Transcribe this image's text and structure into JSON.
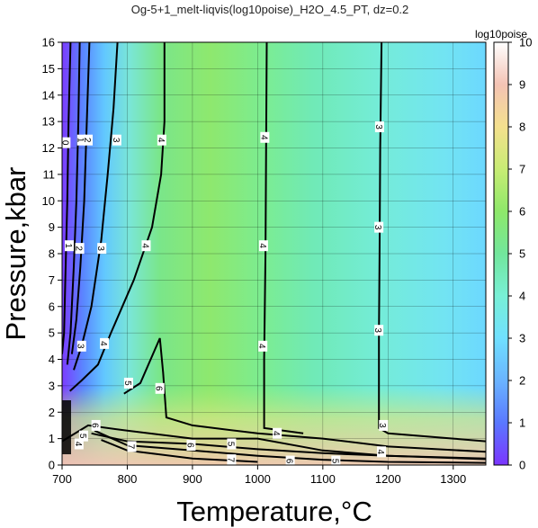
{
  "chart_data": {
    "type": "heatmap",
    "title": "Og-5+1_melt-liqvis(log10poise)_H2O_4.5_PT, dz=0.2",
    "xlabel": "Temperature,°C",
    "ylabel": "Pressure,kbar",
    "xlim": [
      700,
      1350
    ],
    "ylim": [
      0,
      16
    ],
    "x_ticks": [
      "700",
      "800",
      "900",
      "1000",
      "1100",
      "1200",
      "1300"
    ],
    "y_ticks": [
      "0",
      "1",
      "2",
      "3",
      "4",
      "5",
      "6",
      "7",
      "8",
      "9",
      "10",
      "11",
      "12",
      "13",
      "14",
      "15",
      "16"
    ],
    "grid": true,
    "colorbar": {
      "label": "log10poise",
      "range": [
        0,
        10
      ],
      "ticks": [
        "0",
        "1",
        "2",
        "3",
        "4",
        "5",
        "6",
        "7",
        "8",
        "9",
        "10"
      ],
      "colors": [
        "#7b35ff",
        "#5a78ff",
        "#6ab4ff",
        "#70e0ff",
        "#78f0d6",
        "#72e69c",
        "#8ee86a",
        "#c8ec74",
        "#f4e08e",
        "#f4c3b4",
        "#ffffff"
      ]
    },
    "contours": [
      {
        "level": "0",
        "points": [
          [
            713,
            16
          ],
          [
            710,
            13
          ],
          [
            708,
            10
          ],
          [
            705,
            7
          ],
          [
            703,
            5
          ],
          [
            700,
            4.2
          ]
        ]
      },
      {
        "level": "1",
        "points": [
          [
            727,
            16
          ],
          [
            725,
            13
          ],
          [
            722,
            10
          ],
          [
            718,
            7.5
          ],
          [
            713,
            5
          ],
          [
            708,
            3.8
          ]
        ]
      },
      {
        "level": "2",
        "points": [
          [
            742,
            16
          ],
          [
            738,
            13
          ],
          [
            734,
            10
          ],
          [
            728,
            7.5
          ],
          [
            722,
            5.5
          ],
          [
            715,
            4.2
          ]
        ]
      },
      {
        "level": "3",
        "points": [
          [
            785,
            16
          ],
          [
            779,
            13.5
          ],
          [
            770,
            11
          ],
          [
            760,
            8.5
          ],
          [
            745,
            6
          ],
          [
            730,
            4.5
          ],
          [
            718,
            3.6
          ]
        ]
      },
      {
        "level": "4",
        "points": [
          [
            857,
            16
          ],
          [
            857,
            13
          ],
          [
            852,
            11
          ],
          [
            838,
            9
          ],
          [
            810,
            7
          ],
          [
            775,
            5
          ],
          [
            755,
            3.8
          ],
          [
            730,
            3.2
          ],
          [
            712,
            2.8
          ]
        ]
      },
      {
        "level": "4",
        "points": [
          [
            700,
            0.9
          ],
          [
            740,
            1.5
          ],
          [
            800,
            1.3
          ],
          [
            900,
            1.0
          ],
          [
            1000,
            1.0
          ],
          [
            1100,
            0.55
          ],
          [
            1200,
            0.35
          ],
          [
            1350,
            0.22
          ]
        ]
      },
      {
        "level": "4",
        "points": [
          [
            1014,
            16
          ],
          [
            1013,
            12
          ],
          [
            1012,
            8
          ],
          [
            1010,
            4
          ],
          [
            1010,
            1.4
          ],
          [
            1070,
            1.2
          ]
        ]
      },
      {
        "level": "5",
        "points": [
          [
            795,
            2.7
          ],
          [
            820,
            3.1
          ],
          [
            850,
            4.8
          ],
          [
            855,
            3.5
          ],
          [
            860,
            1.8
          ],
          [
            900,
            1.5
          ],
          [
            1000,
            1.2
          ],
          [
            1100,
            1.0
          ],
          [
            1200,
            0.7
          ],
          [
            1350,
            0.5
          ]
        ]
      },
      {
        "level": "5",
        "points": [
          [
            745,
            1.2
          ],
          [
            800,
            0.9
          ],
          [
            900,
            0.8
          ],
          [
            1000,
            0.6
          ],
          [
            1100,
            0.45
          ],
          [
            1200,
            0.35
          ],
          [
            1350,
            0.25
          ]
        ]
      },
      {
        "level": "6",
        "points": [
          [
            750,
            1.3
          ],
          [
            800,
            0.75
          ],
          [
            900,
            0.55
          ],
          [
            1000,
            0.35
          ],
          [
            1100,
            0.2
          ],
          [
            1200,
            0.12
          ],
          [
            1350,
            0.08
          ]
        ]
      },
      {
        "level": "7",
        "points": [
          [
            760,
            0.95
          ],
          [
            800,
            0.55
          ],
          [
            900,
            0.25
          ],
          [
            1000,
            0.12
          ]
        ]
      },
      {
        "level": "3",
        "points": [
          [
            1190,
            16
          ],
          [
            1188,
            12
          ],
          [
            1187,
            8
          ],
          [
            1186,
            5
          ],
          [
            1186,
            1.4
          ],
          [
            1200,
            1.2
          ],
          [
            1300,
            1.0
          ],
          [
            1350,
            0.9
          ]
        ]
      }
    ],
    "contour_labels": [
      {
        "text": "0",
        "x": 706,
        "y": 12.2
      },
      {
        "text": "1",
        "x": 730,
        "y": 12.3
      },
      {
        "text": "2",
        "x": 740,
        "y": 12.3
      },
      {
        "text": "3",
        "x": 784,
        "y": 12.3
      },
      {
        "text": "4",
        "x": 853,
        "y": 12.3
      },
      {
        "text": "4",
        "x": 1011,
        "y": 12.4
      },
      {
        "text": "3",
        "x": 1187,
        "y": 12.8
      },
      {
        "text": "1",
        "x": 711,
        "y": 8.3
      },
      {
        "text": "2",
        "x": 727,
        "y": 8.2
      },
      {
        "text": "3",
        "x": 761,
        "y": 8.2
      },
      {
        "text": "4",
        "x": 829,
        "y": 8.3
      },
      {
        "text": "4",
        "x": 1009,
        "y": 8.3
      },
      {
        "text": "3",
        "x": 1186,
        "y": 9.0
      },
      {
        "text": "3",
        "x": 1186,
        "y": 5.1
      },
      {
        "text": "4",
        "x": 1008,
        "y": 4.5
      },
      {
        "text": "3",
        "x": 730,
        "y": 4.5
      },
      {
        "text": "4",
        "x": 765,
        "y": 4.6
      },
      {
        "text": "5",
        "x": 802,
        "y": 3.1
      },
      {
        "text": "6",
        "x": 850,
        "y": 2.9
      },
      {
        "text": "6",
        "x": 752,
        "y": 1.5
      },
      {
        "text": "5",
        "x": 733,
        "y": 1.1
      },
      {
        "text": "4",
        "x": 726,
        "y": 0.8
      },
      {
        "text": "7",
        "x": 807,
        "y": 0.7
      },
      {
        "text": "6",
        "x": 898,
        "y": 0.75
      },
      {
        "text": "5",
        "x": 960,
        "y": 0.8
      },
      {
        "text": "4",
        "x": 1030,
        "y": 1.2
      },
      {
        "text": "3",
        "x": 1193,
        "y": 1.5
      },
      {
        "text": "4",
        "x": 1190,
        "y": 0.5
      },
      {
        "text": "7",
        "x": 960,
        "y": 0.2
      },
      {
        "text": "6",
        "x": 1050,
        "y": 0.15
      },
      {
        "text": "5",
        "x": 1120,
        "y": 0.15
      }
    ]
  }
}
